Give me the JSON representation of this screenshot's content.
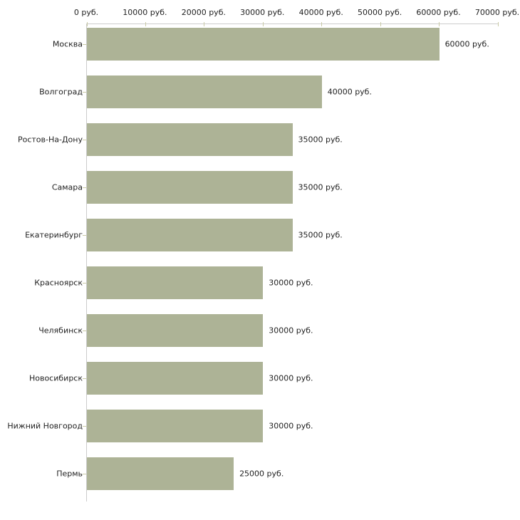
{
  "chart_data": {
    "type": "bar",
    "orientation": "horizontal",
    "title": "",
    "xlabel": "",
    "ylabel": "",
    "categories": [
      "Москва",
      "Волгоград",
      "Ростов-На-Дону",
      "Самара",
      "Екатеринбург",
      "Красноярск",
      "Челябинск",
      "Новосибирск",
      "Нижний Новгород",
      "Пермь"
    ],
    "values": [
      60000,
      40000,
      35000,
      35000,
      35000,
      30000,
      30000,
      30000,
      30000,
      25000
    ],
    "value_labels": [
      "60000 руб.",
      "40000 руб.",
      "35000 руб.",
      "35000 руб.",
      "35000 руб.",
      "30000 руб.",
      "30000 руб.",
      "30000 руб.",
      "30000 руб.",
      "25000 руб."
    ],
    "x_tick_values": [
      0,
      10000,
      20000,
      30000,
      40000,
      50000,
      60000,
      70000
    ],
    "x_tick_labels": [
      "0 руб.",
      "10000 руб.",
      "20000 руб.",
      "30000 руб.",
      "40000 руб.",
      "50000 руб.",
      "60000 руб.",
      "70000 руб."
    ],
    "xlim": [
      0,
      70000
    ],
    "unit": "руб.",
    "grid": false,
    "legend": false,
    "axis_position": "top",
    "colors": {
      "bar": "#adb396",
      "axis_line": "#cccccc",
      "tick_mark": "#c9caa6",
      "text": "#222222",
      "background": "#ffffff"
    }
  }
}
